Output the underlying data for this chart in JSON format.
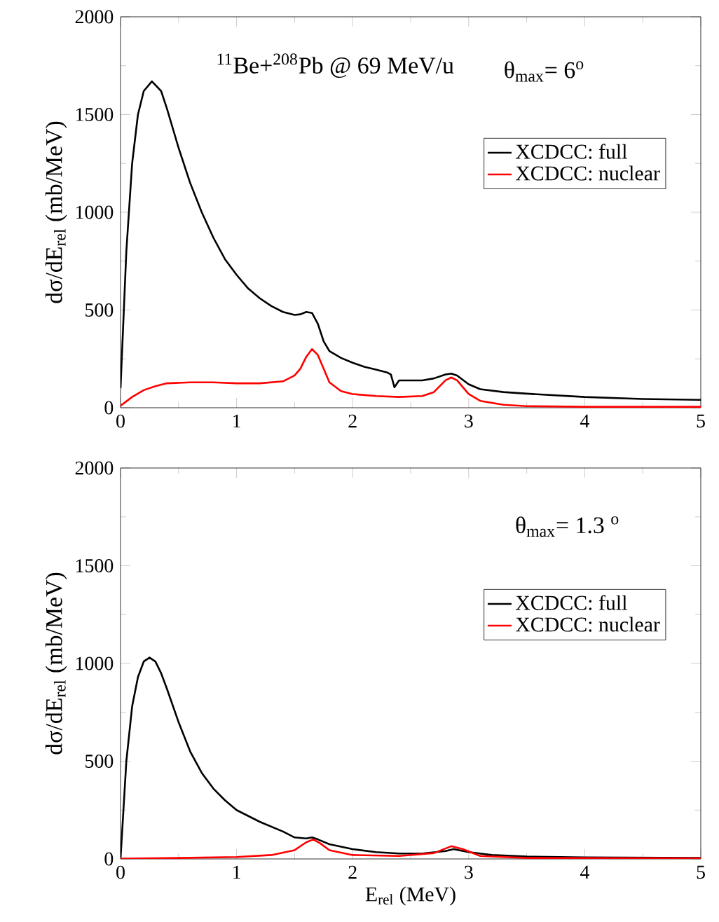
{
  "chart_data": [
    {
      "type": "line",
      "ylabel": "dσ/dE$_{rel}$ (mb/MeV)",
      "annotations": [
        "$^{11}$Be+$^{208}$Pb @ 69 MeV/u",
        "θ$_{max}$= 6$^{o}$"
      ],
      "xlim": [
        0,
        5
      ],
      "ylim": [
        0,
        2000
      ],
      "xticks": [
        0,
        1,
        2,
        3,
        4,
        5
      ],
      "yticks": [
        0,
        500,
        1000,
        1500,
        2000
      ],
      "legend": "right",
      "series": [
        {
          "name": "XCDCC: full",
          "color": "#000000",
          "x": [
            0,
            0.05,
            0.1,
            0.15,
            0.2,
            0.27,
            0.35,
            0.4,
            0.5,
            0.6,
            0.7,
            0.8,
            0.9,
            1.0,
            1.1,
            1.2,
            1.3,
            1.4,
            1.5,
            1.55,
            1.6,
            1.65,
            1.7,
            1.75,
            1.8,
            1.9,
            2.0,
            2.1,
            2.2,
            2.3,
            2.33,
            2.36,
            2.4,
            2.5,
            2.6,
            2.7,
            2.8,
            2.85,
            2.9,
            3.0,
            3.1,
            3.3,
            3.5,
            4.0,
            4.5,
            5.0
          ],
          "values": [
            100,
            800,
            1250,
            1500,
            1620,
            1670,
            1620,
            1530,
            1330,
            1150,
            1000,
            870,
            760,
            680,
            610,
            560,
            520,
            490,
            475,
            478,
            490,
            485,
            430,
            340,
            290,
            255,
            230,
            210,
            195,
            180,
            170,
            105,
            140,
            140,
            140,
            150,
            170,
            175,
            165,
            120,
            95,
            80,
            72,
            55,
            45,
            40
          ]
        },
        {
          "name": "XCDCC: nuclear",
          "color": "#ff0000",
          "x": [
            0,
            0.1,
            0.2,
            0.3,
            0.4,
            0.6,
            0.8,
            1.0,
            1.2,
            1.4,
            1.5,
            1.55,
            1.6,
            1.65,
            1.7,
            1.75,
            1.8,
            1.9,
            2.0,
            2.2,
            2.4,
            2.6,
            2.7,
            2.8,
            2.85,
            2.9,
            3.0,
            3.1,
            3.3,
            3.5,
            4.0,
            5.0
          ],
          "values": [
            10,
            55,
            90,
            110,
            125,
            130,
            130,
            125,
            125,
            135,
            165,
            200,
            260,
            300,
            270,
            200,
            130,
            85,
            70,
            60,
            55,
            60,
            80,
            140,
            155,
            140,
            70,
            35,
            15,
            8,
            5,
            5
          ]
        }
      ]
    },
    {
      "type": "line",
      "xlabel": "E$_{rel}$ (MeV)",
      "ylabel": "dσ/dE$_{rel}$ (mb/MeV)",
      "annotations": [
        "θ$_{max}$= 1.3 $^{o}$"
      ],
      "xlim": [
        0,
        5
      ],
      "ylim": [
        0,
        2000
      ],
      "xticks": [
        0,
        1,
        2,
        3,
        4,
        5
      ],
      "yticks": [
        0,
        500,
        1000,
        1500,
        2000
      ],
      "legend": "right",
      "series": [
        {
          "name": "XCDCC: full",
          "color": "#000000",
          "x": [
            0,
            0.05,
            0.1,
            0.15,
            0.2,
            0.25,
            0.3,
            0.35,
            0.4,
            0.5,
            0.6,
            0.7,
            0.8,
            0.9,
            1.0,
            1.2,
            1.4,
            1.5,
            1.6,
            1.65,
            1.7,
            1.8,
            2.0,
            2.2,
            2.4,
            2.6,
            2.8,
            2.87,
            3.0,
            3.2,
            3.5,
            4.0,
            5.0
          ],
          "values": [
            0,
            500,
            780,
            930,
            1010,
            1030,
            1010,
            950,
            870,
            700,
            550,
            440,
            360,
            300,
            250,
            190,
            140,
            110,
            105,
            110,
            100,
            75,
            50,
            35,
            28,
            28,
            40,
            50,
            35,
            20,
            12,
            8,
            5
          ]
        },
        {
          "name": "XCDCC: nuclear",
          "color": "#ff0000",
          "x": [
            0,
            0.5,
            1.0,
            1.3,
            1.5,
            1.6,
            1.66,
            1.72,
            1.8,
            2.0,
            2.4,
            2.7,
            2.85,
            2.95,
            3.1,
            3.5,
            5.0
          ],
          "values": [
            2,
            5,
            10,
            20,
            45,
            85,
            100,
            80,
            45,
            20,
            15,
            30,
            65,
            50,
            15,
            5,
            3
          ]
        }
      ]
    }
  ]
}
